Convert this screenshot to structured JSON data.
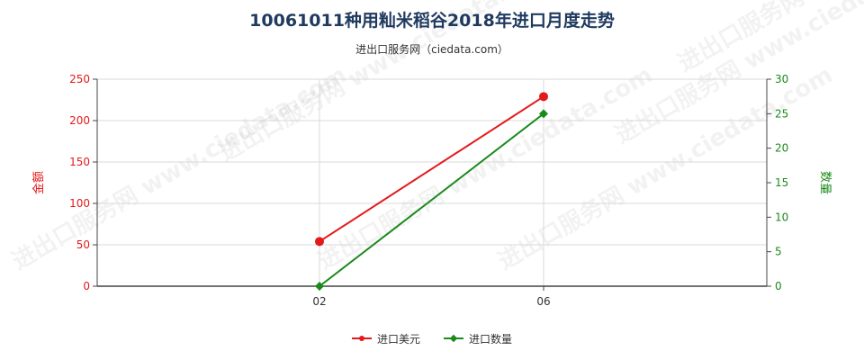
{
  "chart_data": {
    "type": "line",
    "title": "10061011种用籼米稻谷2018年进口月度走势",
    "subtitle": "进出口服务网（ciedata.com）",
    "categories": [
      "02",
      "06"
    ],
    "x_ticks": [
      "02",
      "06"
    ],
    "series": [
      {
        "name": "进口美元",
        "axis": "left",
        "color": "#e31a1c",
        "marker": "circle",
        "points": [
          {
            "x": "02",
            "y": 54
          },
          {
            "x": "06",
            "y": 229
          }
        ]
      },
      {
        "name": "进口数量",
        "axis": "right",
        "color": "#1a8a1a",
        "marker": "diamond",
        "points": [
          {
            "x": "02",
            "y": 0
          },
          {
            "x": "06",
            "y": 25
          }
        ]
      }
    ],
    "left_axis": {
      "label": "金额",
      "min": 0,
      "max": 250,
      "ticks": [
        0,
        50,
        100,
        150,
        200,
        250
      ],
      "color": "#e31a1c"
    },
    "right_axis": {
      "label": "数量",
      "min": 0,
      "max": 30,
      "ticks": [
        0,
        5,
        10,
        15,
        20,
        25,
        30
      ],
      "color": "#1a8a1a"
    },
    "grid": true,
    "legend_position": "bottom",
    "watermark": "进出口服务网 www.ciedata.com"
  }
}
